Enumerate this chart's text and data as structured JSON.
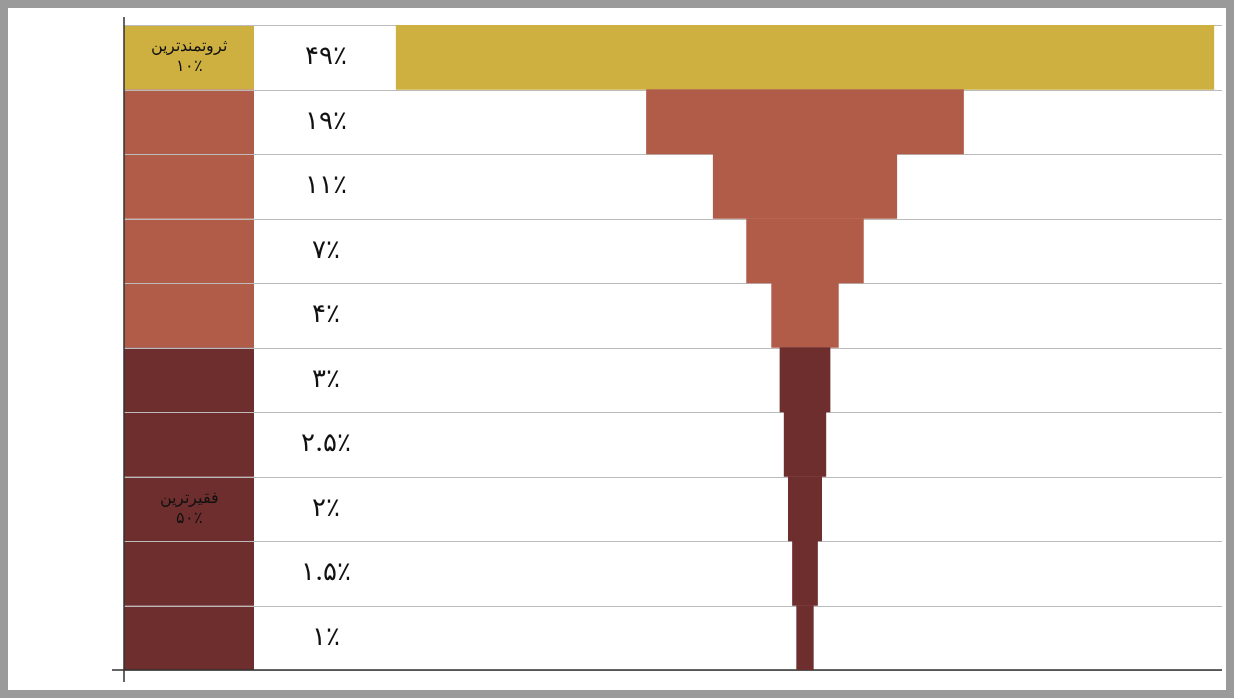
{
  "chart_data": {
    "type": "other",
    "categories": [
      null,
      null,
      null,
      null,
      null,
      null,
      null,
      null,
      null,
      null
    ],
    "values": [
      49,
      19,
      11,
      7,
      4,
      3,
      2.5,
      2,
      1.5,
      1
    ],
    "value_labels": [
      "۴۹٪",
      "۱۹٪",
      "۱۱٪",
      "۷٪",
      "۴٪",
      "۳٪",
      "۲.۵٪",
      "۲٪",
      "۱.۵٪",
      "۱٪"
    ],
    "colors": [
      "#cdb03f",
      "#b05c48",
      "#b05c48",
      "#b05c48",
      "#b05c48",
      "#6e2e2e",
      "#6e2e2e",
      "#6e2e2e",
      "#6e2e2e",
      "#6e2e2e"
    ],
    "annotations": [
      "ثروتمندترین ۱۰٪",
      "فقیرترین ۵۰٪"
    ]
  }
}
